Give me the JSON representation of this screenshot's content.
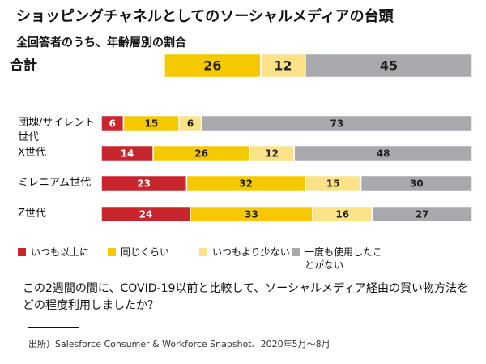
{
  "chart_data": {
    "type": "bar",
    "orientation": "horizontal",
    "stacked": true,
    "title": "ショッピングチャネルとしてのソーシャルメディアの台頭",
    "subtitle": "全回答者のうち、年齢層別の割合",
    "categories": [
      "合計",
      "団塊/サイレント世代",
      "X世代",
      "ミレニアム世代",
      "Z世代"
    ],
    "series": [
      {
        "name": "いつも以上に",
        "color": "#c8262c",
        "values": [
          null,
          6,
          14,
          23,
          24
        ]
      },
      {
        "name": "同じくらい",
        "color": "#f5c800",
        "values": [
          26,
          15,
          26,
          32,
          33
        ]
      },
      {
        "name": "いつもより少ない",
        "color": "#fde28a",
        "values": [
          12,
          6,
          12,
          15,
          16
        ]
      },
      {
        "name": "一度も使用したことがない",
        "color": "#a7a9ac",
        "values": [
          45,
          73,
          48,
          30,
          27
        ]
      }
    ],
    "xlim": [
      0,
      100
    ],
    "question": "この2週間の間に、COVID-19以前と比較して、ソーシャルメディア経由の買い物方法をどの程度利用しましたか？",
    "source": "出所）Salesforce Consumer & Workforce Snapshot、2020年5月～8月"
  }
}
